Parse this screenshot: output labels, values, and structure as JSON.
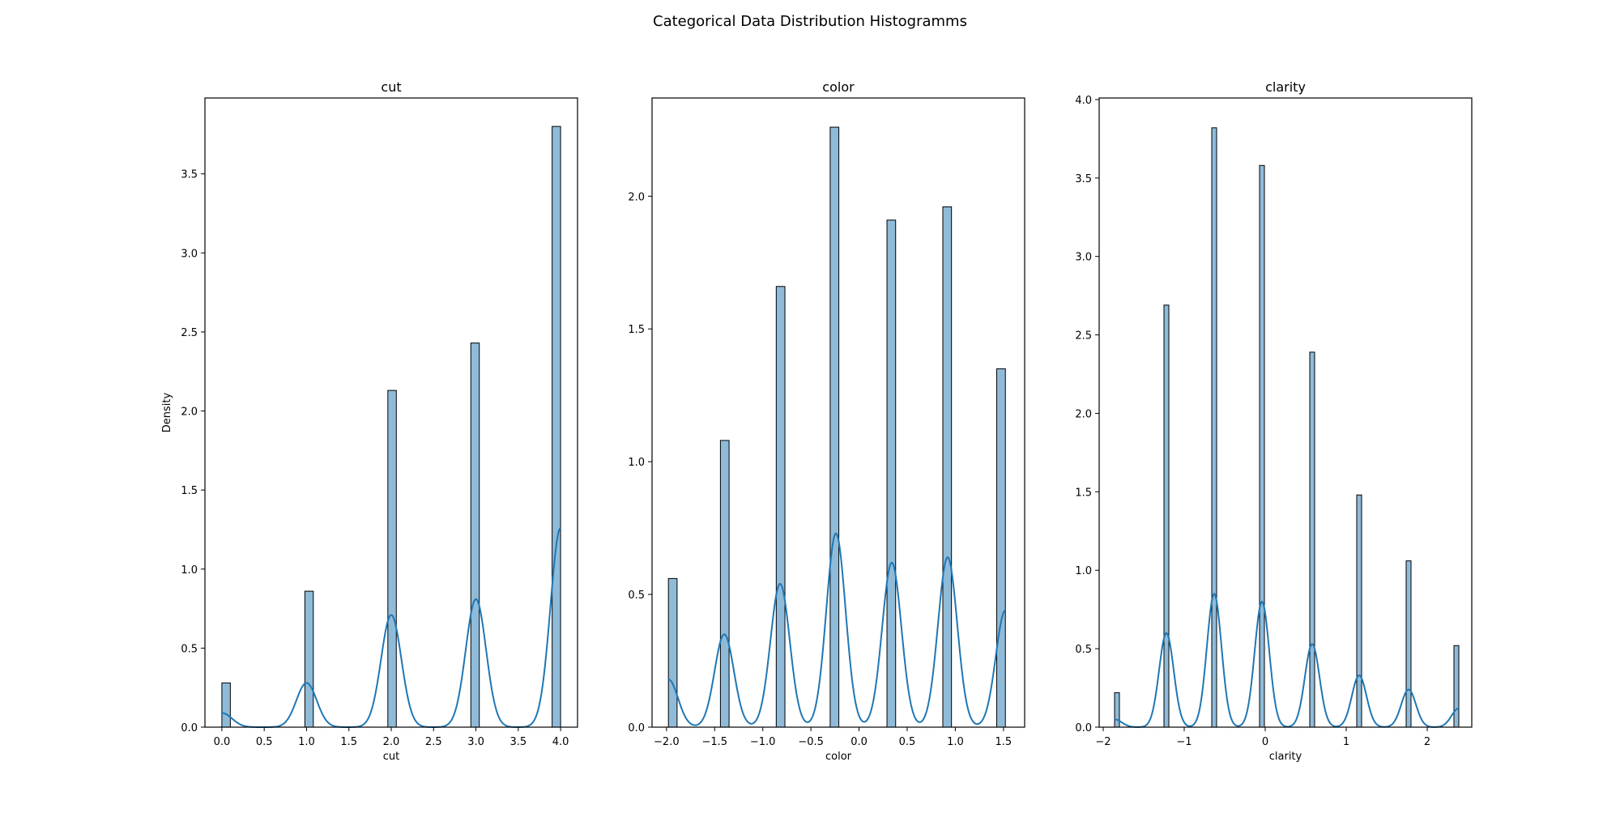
{
  "suptitle": "Categorical Data Distribution Histogramms",
  "colors": {
    "bar_fill": "#1f77b4",
    "bar_fill_opacity": 0.5,
    "bar_edge": "#000000",
    "kde_line": "#1f77b4",
    "axes": "#000000",
    "background": "#ffffff"
  },
  "chart_data": [
    {
      "type": "bar",
      "title": "cut",
      "xlabel": "cut",
      "ylabel": "Density",
      "xlim": [
        -0.2,
        4.2
      ],
      "ylim": [
        0,
        3.98
      ],
      "xticks": [
        0.0,
        0.5,
        1.0,
        1.5,
        2.0,
        2.5,
        3.0,
        3.5,
        4.0
      ],
      "xtick_labels": [
        "0.0",
        "0.5",
        "1.0",
        "1.5",
        "2.0",
        "2.5",
        "3.0",
        "3.5",
        "4.0"
      ],
      "yticks": [
        0.0,
        0.5,
        1.0,
        1.5,
        2.0,
        2.5,
        3.0,
        3.5
      ],
      "ytick_labels": [
        "0.0",
        "0.5",
        "1.0",
        "1.5",
        "2.0",
        "2.5",
        "3.0",
        "3.5"
      ],
      "grid": false,
      "bins": [
        {
          "x0": 0.0,
          "x1": 0.1,
          "density": 0.28
        },
        {
          "x0": 0.98,
          "x1": 1.08,
          "density": 0.86
        },
        {
          "x0": 1.96,
          "x1": 2.06,
          "density": 2.13
        },
        {
          "x0": 2.94,
          "x1": 3.04,
          "density": 2.43
        },
        {
          "x0": 3.9,
          "x1": 4.0,
          "density": 3.8
        }
      ],
      "kde": {
        "x_range": [
          0.0,
          4.0
        ],
        "peaks": [
          {
            "x": 0.0,
            "height": 0.09,
            "sigma": 0.12
          },
          {
            "x": 1.0,
            "height": 0.28,
            "sigma": 0.12
          },
          {
            "x": 2.0,
            "height": 0.71,
            "sigma": 0.12
          },
          {
            "x": 3.0,
            "height": 0.81,
            "sigma": 0.12
          },
          {
            "x": 4.0,
            "height": 1.26,
            "sigma": 0.12
          }
        ]
      }
    },
    {
      "type": "bar",
      "title": "color",
      "xlabel": "color",
      "ylabel": "",
      "xlim": [
        -2.15,
        1.72
      ],
      "ylim": [
        0,
        2.37
      ],
      "xticks": [
        -2.0,
        -1.5,
        -1.0,
        -0.5,
        0.0,
        0.5,
        1.0,
        1.5
      ],
      "xtick_labels": [
        "−2.0",
        "−1.5",
        "−1.0",
        "−0.5",
        "0.0",
        "0.5",
        "1.0",
        "1.5"
      ],
      "yticks": [
        0.0,
        0.5,
        1.0,
        1.5,
        2.0
      ],
      "ytick_labels": [
        "0.0",
        "0.5",
        "1.0",
        "1.5",
        "2.0"
      ],
      "grid": false,
      "bins": [
        {
          "x0": -1.98,
          "x1": -1.89,
          "density": 0.56
        },
        {
          "x0": -1.44,
          "x1": -1.35,
          "density": 1.08
        },
        {
          "x0": -0.86,
          "x1": -0.77,
          "density": 1.66
        },
        {
          "x0": -0.3,
          "x1": -0.21,
          "density": 2.26
        },
        {
          "x0": 0.29,
          "x1": 0.38,
          "density": 1.91
        },
        {
          "x0": 0.87,
          "x1": 0.96,
          "density": 1.96
        },
        {
          "x0": 1.43,
          "x1": 1.52,
          "density": 1.35
        }
      ],
      "kde": {
        "x_range": [
          -1.98,
          1.52
        ],
        "peaks": [
          {
            "x": -1.98,
            "height": 0.18,
            "sigma": 0.1
          },
          {
            "x": -1.4,
            "height": 0.35,
            "sigma": 0.1
          },
          {
            "x": -0.82,
            "height": 0.54,
            "sigma": 0.1
          },
          {
            "x": -0.24,
            "height": 0.73,
            "sigma": 0.1
          },
          {
            "x": 0.34,
            "height": 0.62,
            "sigma": 0.1
          },
          {
            "x": 0.92,
            "height": 0.64,
            "sigma": 0.1
          },
          {
            "x": 1.52,
            "height": 0.44,
            "sigma": 0.1
          }
        ]
      }
    },
    {
      "type": "bar",
      "title": "clarity",
      "xlabel": "clarity",
      "ylabel": "",
      "xlim": [
        -2.05,
        2.55
      ],
      "ylim": [
        0,
        4.01
      ],
      "xticks": [
        -2,
        -1,
        0,
        1,
        2
      ],
      "xtick_labels": [
        "−2",
        "−1",
        "0",
        "1",
        "2"
      ],
      "yticks": [
        0.0,
        0.5,
        1.0,
        1.5,
        2.0,
        2.5,
        3.0,
        3.5,
        4.0
      ],
      "ytick_labels": [
        "0.0",
        "0.5",
        "1.0",
        "1.5",
        "2.0",
        "2.5",
        "3.0",
        "3.5",
        "4.0"
      ],
      "grid": false,
      "bins": [
        {
          "x0": -1.86,
          "x1": -1.8,
          "density": 0.22
        },
        {
          "x0": -1.25,
          "x1": -1.19,
          "density": 2.69
        },
        {
          "x0": -0.66,
          "x1": -0.6,
          "density": 3.82
        },
        {
          "x0": -0.07,
          "x1": -0.01,
          "density": 3.58
        },
        {
          "x0": 0.55,
          "x1": 0.61,
          "density": 2.39
        },
        {
          "x0": 1.13,
          "x1": 1.19,
          "density": 1.48
        },
        {
          "x0": 1.74,
          "x1": 1.8,
          "density": 1.06
        },
        {
          "x0": 2.33,
          "x1": 2.39,
          "density": 0.52
        }
      ],
      "kde": {
        "x_range": [
          -1.86,
          2.39
        ],
        "peaks": [
          {
            "x": -1.86,
            "height": 0.05,
            "sigma": 0.09
          },
          {
            "x": -1.22,
            "height": 0.6,
            "sigma": 0.09
          },
          {
            "x": -0.63,
            "height": 0.85,
            "sigma": 0.09
          },
          {
            "x": -0.04,
            "height": 0.8,
            "sigma": 0.09
          },
          {
            "x": 0.58,
            "height": 0.53,
            "sigma": 0.09
          },
          {
            "x": 1.16,
            "height": 0.33,
            "sigma": 0.09
          },
          {
            "x": 1.77,
            "height": 0.24,
            "sigma": 0.09
          },
          {
            "x": 2.39,
            "height": 0.12,
            "sigma": 0.09
          }
        ]
      }
    }
  ]
}
